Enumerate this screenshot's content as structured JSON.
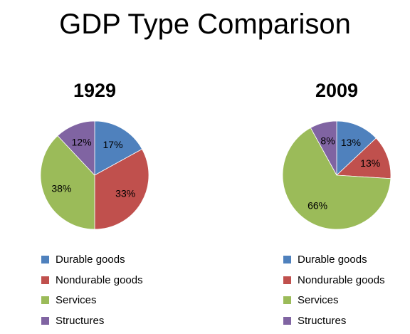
{
  "title": "GDP Type Comparison",
  "colors": {
    "durable": "#4F81BD",
    "nondurable": "#C0504D",
    "services": "#9BBB59",
    "structures": "#8064A2"
  },
  "chart_data": [
    {
      "type": "pie",
      "title": "1929",
      "labels": [
        "Durable goods",
        "Nondurable goods",
        "Services",
        "Structures"
      ],
      "values": [
        17,
        33,
        38,
        12
      ],
      "data_labels": [
        "17%",
        "33%",
        "38%",
        "12%"
      ],
      "legend": "bottom"
    },
    {
      "type": "pie",
      "title": "2009",
      "labels": [
        "Durable goods",
        "Nondurable goods",
        "Services",
        "Structures"
      ],
      "values": [
        13,
        13,
        66,
        8
      ],
      "data_labels": [
        "13%",
        "13%",
        "66%",
        "8%"
      ],
      "legend": "bottom"
    }
  ]
}
